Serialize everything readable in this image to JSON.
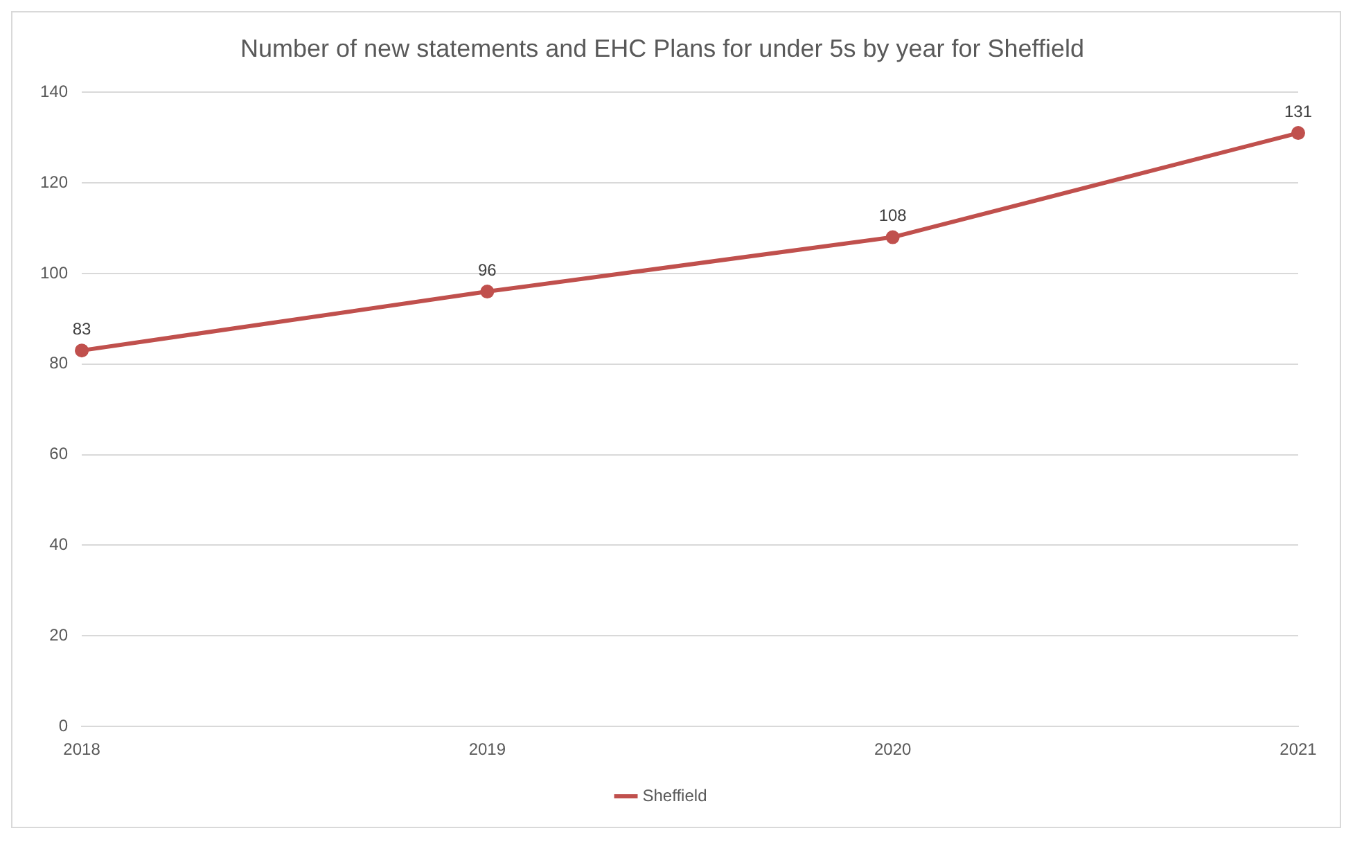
{
  "chart_data": {
    "type": "line",
    "title": "Number of new statements and EHC Plans for under 5s by year for Sheffield",
    "categories": [
      "2018",
      "2019",
      "2020",
      "2021"
    ],
    "series": [
      {
        "name": "Sheffield",
        "color": "#c0504d",
        "values": [
          83,
          96,
          108,
          131
        ]
      }
    ],
    "ylim": [
      0,
      140
    ],
    "yticks": [
      0,
      20,
      40,
      60,
      80,
      100,
      120,
      140
    ],
    "grid": "y",
    "legend": "bottom",
    "marker": "circle",
    "line_style": "solid",
    "data_labels": true
  }
}
